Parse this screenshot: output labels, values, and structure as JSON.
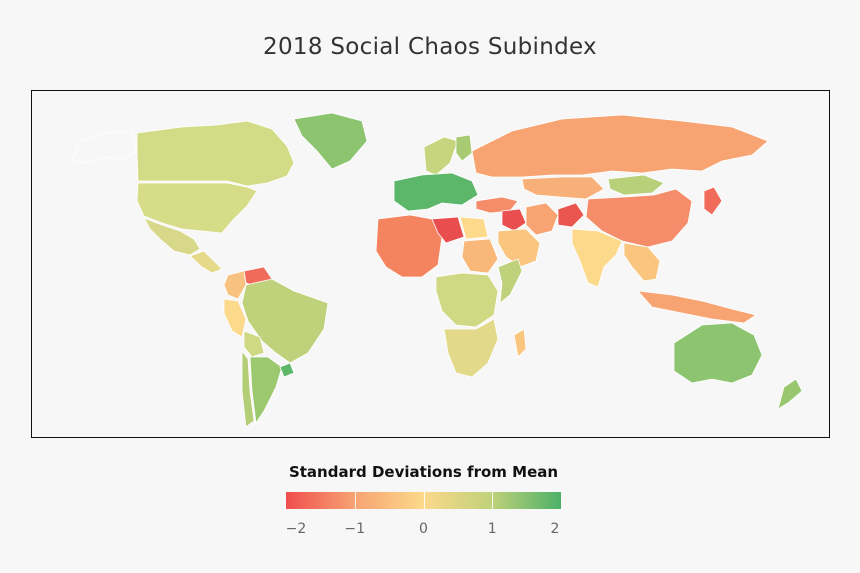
{
  "title": "2018 Social Chaos Subindex",
  "legend": {
    "title": "Standard Deviations from Mean",
    "ticks": [
      "−2",
      "−1",
      "0",
      "1",
      "2"
    ],
    "tick_values": [
      -2,
      -1,
      0,
      1,
      2
    ],
    "colors": [
      "#f04e4e",
      "#f7a372",
      "#fcd98b",
      "#bfd17a",
      "#4cb168"
    ]
  },
  "map_data": {
    "scale": "diverging",
    "regions": [
      {
        "name": "Canada",
        "color": "#8cc470"
      },
      {
        "name": "Greenland",
        "color": "#f7f7f7"
      },
      {
        "name": "Alaska",
        "color": "#d2dc86"
      },
      {
        "name": "United States",
        "color": "#d6dc88"
      },
      {
        "name": "Mexico",
        "color": "#d7d889"
      },
      {
        "name": "Central America",
        "color": "#e6d98a"
      },
      {
        "name": "Venezuela",
        "color": "#f06b5a"
      },
      {
        "name": "Colombia",
        "color": "#f7c27f"
      },
      {
        "name": "Peru",
        "color": "#fcd98b"
      },
      {
        "name": "Brazil",
        "color": "#bfd17a"
      },
      {
        "name": "Bolivia",
        "color": "#cfd883"
      },
      {
        "name": "Argentina",
        "color": "#b4cd77"
      },
      {
        "name": "Chile",
        "color": "#9cc870"
      },
      {
        "name": "Uruguay",
        "color": "#5db86a"
      },
      {
        "name": "Western Europe",
        "color": "#c6d57e"
      },
      {
        "name": "Scandinavia",
        "color": "#a7ca73"
      },
      {
        "name": "Finland",
        "color": "#5cb76a"
      },
      {
        "name": "Russia",
        "color": "#f7a372"
      },
      {
        "name": "Kazakhstan",
        "color": "#f8b07a"
      },
      {
        "name": "Mongolia",
        "color": "#b8d07a"
      },
      {
        "name": "China",
        "color": "#f58d6b"
      },
      {
        "name": "Turkey",
        "color": "#f58d6b"
      },
      {
        "name": "Syria / Iraq",
        "color": "#ea4e4e"
      },
      {
        "name": "Iran",
        "color": "#f7a372"
      },
      {
        "name": "Afghanistan",
        "color": "#e8564f"
      },
      {
        "name": "Saudi Arabia",
        "color": "#f9c57f"
      },
      {
        "name": "India",
        "color": "#fcd98b"
      },
      {
        "name": "Southeast Asia",
        "color": "#f9c57f"
      },
      {
        "name": "Libya",
        "color": "#f06b5a"
      },
      {
        "name": "Egypt",
        "color": "#f7a372"
      },
      {
        "name": "Sudan",
        "color": "#f3845f"
      },
      {
        "name": "Somalia",
        "color": "#e94d4d"
      },
      {
        "name": "Sahel",
        "color": "#fcd98b"
      },
      {
        "name": "Central Africa",
        "color": "#f9b87a"
      },
      {
        "name": "Southern Africa",
        "color": "#bfd17a"
      },
      {
        "name": "Madagascar",
        "color": "#cfd883"
      },
      {
        "name": "Japan",
        "color": "#e3d98a"
      },
      {
        "name": "Indonesia",
        "color": "#f9c57f"
      },
      {
        "name": "Australia",
        "color": "#8cc470"
      },
      {
        "name": "New Zealand",
        "color": "#99c770"
      }
    ]
  }
}
